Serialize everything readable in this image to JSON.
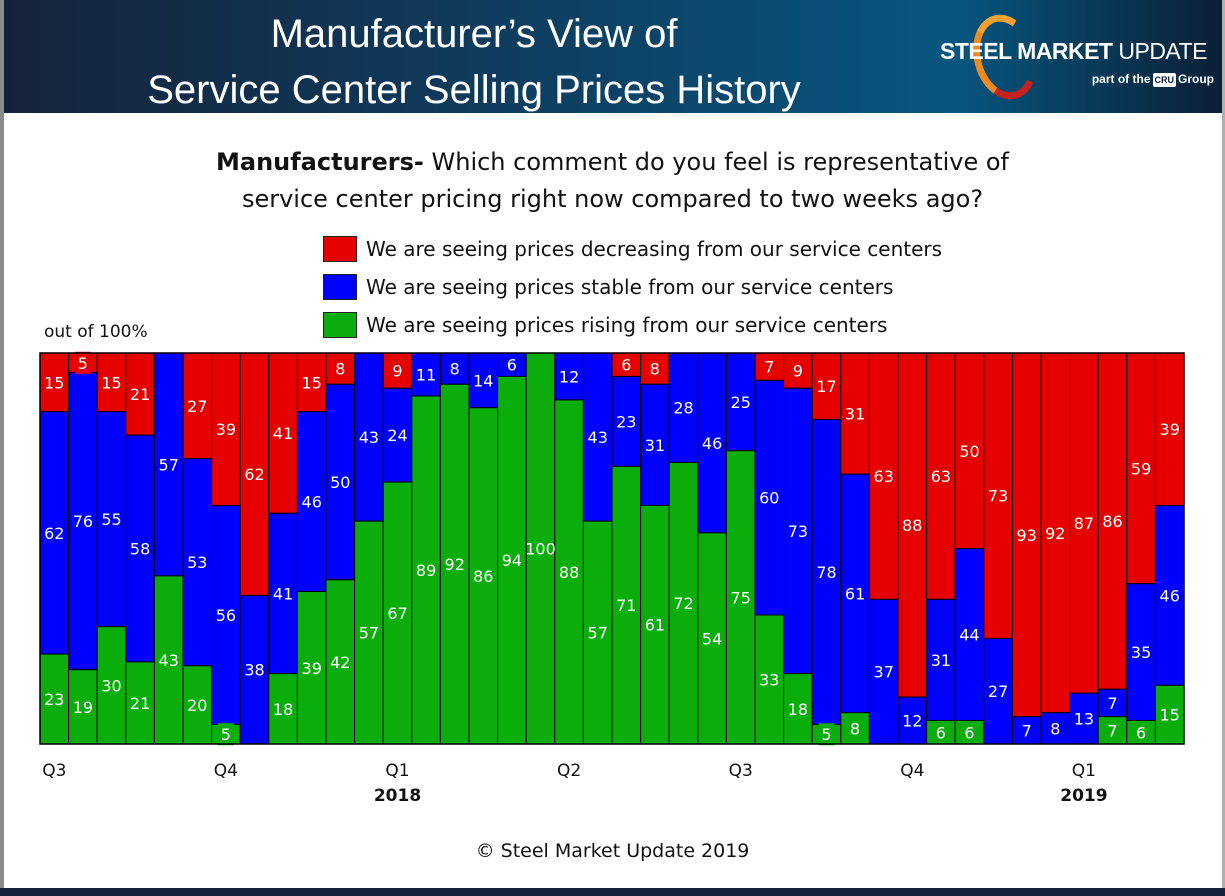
{
  "header": {
    "title_line1": "Manufacturer’s View of",
    "title_line2": "Service Center Selling Prices History",
    "logo_bold": "STEEL MARKET",
    "logo_light": "UPDATE",
    "logo_sub_prefix": "part of the",
    "logo_sub_badge": "CRU",
    "logo_sub_suffix": "Group"
  },
  "question": {
    "bold": "Manufacturers-",
    "line1": "Which comment do you feel is representative of",
    "line2": "service center pricing right now compared to two weeks ago?"
  },
  "footer": {
    "copyright": "© Steel Market Update 2019"
  },
  "chart_data": {
    "type": "bar",
    "stacked": true,
    "ylim": [
      0,
      100
    ],
    "ylabel": "out of 100%",
    "legend_position": "top",
    "grid": false,
    "series": [
      {
        "name": "We are seeing prices decreasing from our service centers",
        "color": "#e60000",
        "values": [
          15,
          5,
          15,
          21,
          0,
          27,
          39,
          62,
          41,
          15,
          8,
          0,
          9,
          0,
          0,
          0,
          0,
          0,
          0,
          0,
          6,
          8,
          0,
          0,
          0,
          7,
          9,
          17,
          31,
          63,
          88,
          63,
          50,
          73,
          93,
          92,
          87,
          86,
          59,
          39
        ]
      },
      {
        "name": "We are seeing prices stable from our service centers",
        "color": "#0000ff",
        "values": [
          62,
          76,
          55,
          58,
          57,
          53,
          56,
          38,
          41,
          46,
          50,
          43,
          24,
          11,
          8,
          14,
          6,
          0,
          12,
          43,
          23,
          31,
          28,
          46,
          25,
          60,
          73,
          78,
          61,
          37,
          12,
          31,
          44,
          27,
          7,
          8,
          13,
          7,
          35,
          46
        ]
      },
      {
        "name": "We are seeing prices rising from our service centers",
        "color": "#0aad0a",
        "values": [
          23,
          19,
          30,
          21,
          43,
          20,
          5,
          0,
          18,
          39,
          42,
          57,
          67,
          89,
          92,
          86,
          94,
          100,
          88,
          57,
          71,
          61,
          72,
          54,
          75,
          33,
          18,
          5,
          8,
          0,
          0,
          6,
          6,
          0,
          0,
          0,
          0,
          7,
          6,
          15
        ]
      }
    ],
    "x_tick_labels": [
      {
        "bar": 1,
        "label": "Q3"
      },
      {
        "bar": 7,
        "label": "Q4"
      },
      {
        "bar": 13,
        "label": "Q1",
        "year": "2018"
      },
      {
        "bar": 19,
        "label": "Q2"
      },
      {
        "bar": 25,
        "label": "Q3"
      },
      {
        "bar": 31,
        "label": "Q4"
      },
      {
        "bar": 37,
        "label": "Q1",
        "year": "2019"
      }
    ]
  }
}
